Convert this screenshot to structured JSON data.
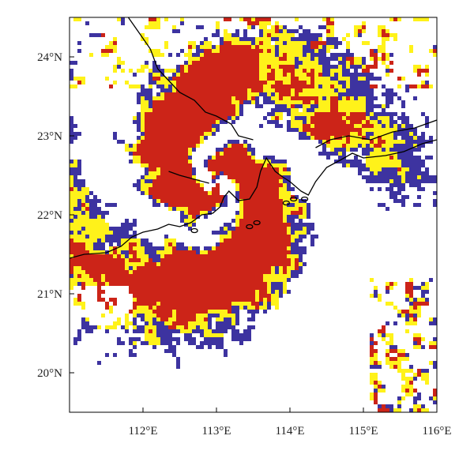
{
  "map": {
    "colors": {
      "red": "#cc2418",
      "yellow": "#fff21a",
      "blue": "#3d33a0",
      "background": "#ffffff",
      "coastline": "#000000",
      "frame": "#000000"
    },
    "lon_range": [
      111.0,
      116.0
    ],
    "lat_range": [
      19.5,
      24.5
    ],
    "lon_ticks": [
      112,
      113,
      114,
      115,
      116
    ],
    "lat_ticks": [
      20,
      21,
      22,
      23,
      24
    ],
    "lon_labels": [
      "112°E",
      "113°E",
      "114°E",
      "115°E",
      "116°E"
    ],
    "lat_labels": [
      "20°N",
      "21°N",
      "22°N",
      "23°N",
      "24°N"
    ],
    "typhoon_center": {
      "lon": 113.0,
      "lat": 22.4
    }
  }
}
